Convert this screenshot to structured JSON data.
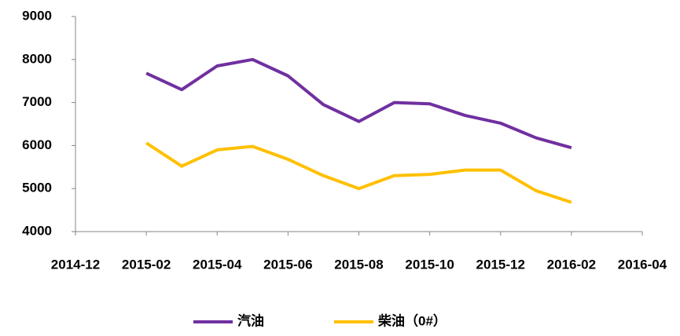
{
  "chart_data": {
    "type": "line",
    "x": [
      "2015-02",
      "2015-03",
      "2015-04",
      "2015-05",
      "2015-06",
      "2015-07",
      "2015-08",
      "2015-09",
      "2015-10",
      "2015-11",
      "2015-12",
      "2016-01",
      "2016-02"
    ],
    "series": [
      {
        "name": "汽油",
        "color": "#7030a0",
        "values": [
          7680,
          7300,
          7850,
          8000,
          7620,
          6950,
          6560,
          7000,
          6970,
          6700,
          6520,
          6180,
          5950
        ]
      },
      {
        "name": "柴油（0#）",
        "color": "#ffc000",
        "values": [
          6060,
          5520,
          5900,
          5980,
          5680,
          5300,
          5000,
          5300,
          5330,
          5430,
          5430,
          4950,
          4680
        ]
      }
    ],
    "xlim": [
      "2014-12",
      "2016-04"
    ],
    "xticks": [
      "2014-12",
      "2015-02",
      "2015-04",
      "2015-06",
      "2015-08",
      "2015-10",
      "2015-12",
      "2016-02",
      "2016-04"
    ],
    "ylim": [
      4000,
      9000
    ],
    "yticks": [
      4000,
      5000,
      6000,
      7000,
      8000,
      9000
    ],
    "legend": "bottom"
  }
}
